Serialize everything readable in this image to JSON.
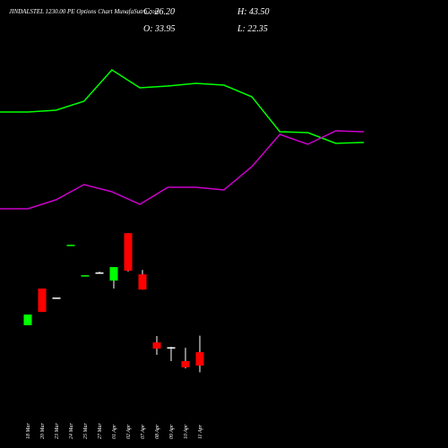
{
  "chart_data": {
    "type": "candlestick",
    "title": "JINDALSTEL 1230.00 PE Options Chart MunafaSutra.com",
    "close_label": "C: 26.20",
    "high_label": "H: 43.50",
    "open_label": "O: 33.95",
    "low_label": "L: 22.35",
    "categories": [
      "18 Mar",
      "20 Mar",
      "23 Mar",
      "24 Mar",
      "25 Mar",
      "27 Mar",
      "01 Apr",
      "02 Apr",
      "07 Apr",
      "08 Apr",
      "09 Apr",
      "10 Apr",
      "11 Apr"
    ],
    "open": [
      49.5,
      70.7,
      65.5,
      95.8,
      78.2,
      80.0,
      75.3,
      102.7,
      78.9,
      39.6,
      36.8,
      28.8,
      33.95
    ],
    "high": [
      55.7,
      70.7,
      65.5,
      96.0,
      78.4,
      80.5,
      83.1,
      102.7,
      81.5,
      43.3,
      37.0,
      36.5,
      43.5
    ],
    "low": [
      49.5,
      57.2,
      65.5,
      95.8,
      78.2,
      79.5,
      70.7,
      80.5,
      70.1,
      32.4,
      28.8,
      24.6,
      22.35
    ],
    "close": [
      55.7,
      57.2,
      65.5,
      96.0,
      78.4,
      80.0,
      83.1,
      81.0,
      70.1,
      36.0,
      36.8,
      25.2,
      26.2
    ],
    "ylim": [
      20,
      108
    ],
    "up_color": "#00ff00",
    "down_color": "#ff0000",
    "doji_color": "#ffffff",
    "overlay": {
      "type": "line",
      "x": [
        0,
        1,
        2,
        3,
        4,
        5,
        6,
        7,
        8,
        9,
        10,
        11,
        12,
        13
      ],
      "xlim": [
        0,
        13
      ],
      "ylim": [
        0,
        100
      ],
      "series": [
        {
          "color": "#00ff00",
          "values": [
            67.5,
            67.5,
            68.5,
            73.5,
            91,
            81,
            82,
            83.5,
            82.5,
            76,
            56.5,
            56,
            50,
            50.5
          ]
        },
        {
          "color": "#cc00cc",
          "values": [
            13.5,
            13.5,
            18.5,
            27,
            23,
            16,
            25.5,
            25.5,
            24,
            37,
            55,
            49.5,
            57,
            56.5
          ]
        }
      ]
    }
  }
}
